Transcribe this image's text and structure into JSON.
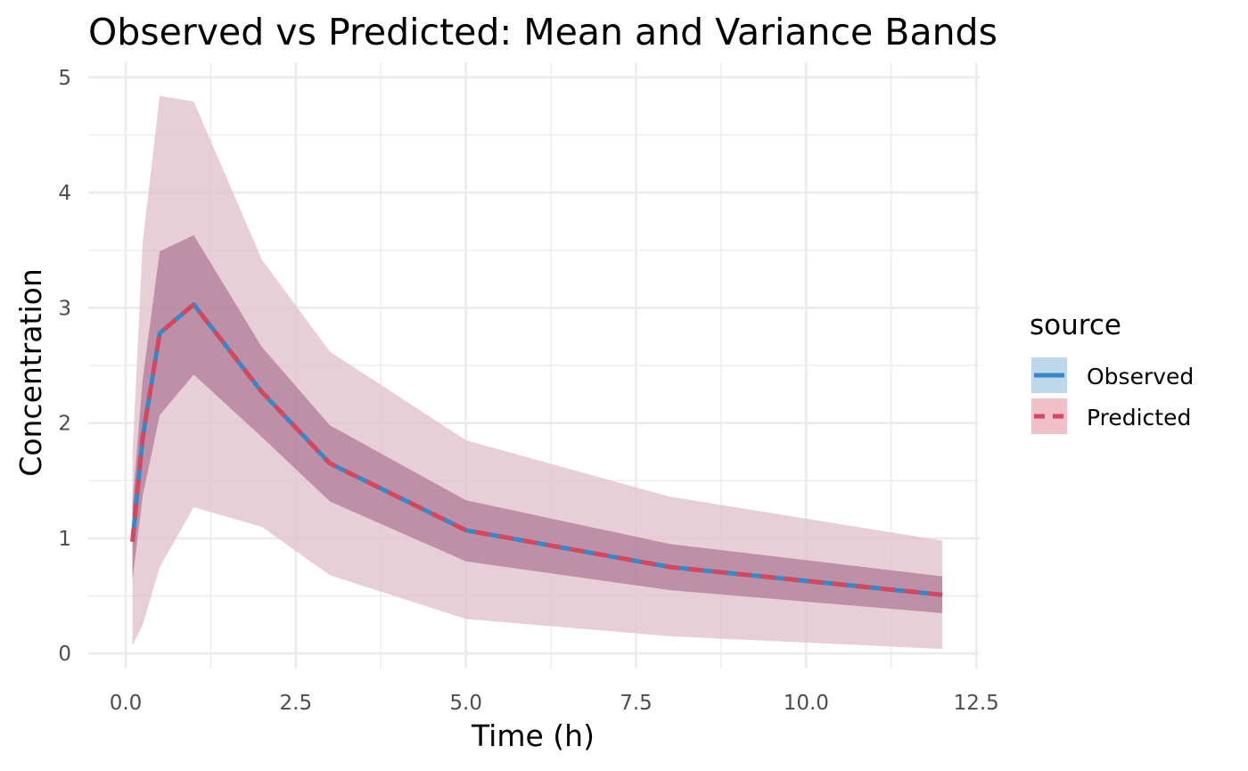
{
  "chart_data": {
    "type": "area",
    "title": "Observed vs Predicted: Mean and Variance Bands",
    "xlabel": "Time (h)",
    "ylabel": "Concentration",
    "xlim": [
      -0.55,
      12.55
    ],
    "ylim": [
      -0.13,
      5.13
    ],
    "x_ticks": [
      0.0,
      2.5,
      5.0,
      7.5,
      10.0,
      12.5
    ],
    "x_tick_labels": [
      "0.0",
      "2.5",
      "5.0",
      "7.5",
      "10.0",
      "12.5"
    ],
    "y_ticks": [
      0,
      1,
      2,
      3,
      4,
      5
    ],
    "y_tick_labels": [
      "0",
      "1",
      "2",
      "3",
      "4",
      "5"
    ],
    "grid": true,
    "legend": {
      "title": "source",
      "position": "right"
    },
    "x": [
      0.1,
      0.25,
      0.5,
      1,
      2,
      3,
      5,
      8,
      12
    ],
    "series": [
      {
        "name": "Observed",
        "color": "#3a87c8",
        "fill": "#b9d5ea",
        "linestyle": "solid",
        "mean": [
          0.97,
          1.88,
          2.78,
          3.03,
          2.27,
          1.65,
          1.07,
          0.75,
          0.51
        ],
        "sd_lower": [
          0.64,
          1.37,
          2.07,
          2.42,
          1.88,
          1.32,
          0.8,
          0.55,
          0.35
        ],
        "sd_upper": [
          1.3,
          2.38,
          3.49,
          3.63,
          2.66,
          1.98,
          1.33,
          0.95,
          0.67
        ],
        "outer_lower": [
          0.07,
          0.25,
          0.75,
          1.27,
          1.1,
          0.68,
          0.3,
          0.15,
          0.04
        ],
        "outer_upper": [
          1.72,
          3.57,
          4.84,
          4.79,
          3.42,
          2.62,
          1.85,
          1.36,
          0.98
        ]
      },
      {
        "name": "Predicted",
        "color": "#d4475e",
        "fill": "#f0bcc4",
        "linestyle": "dashed",
        "mean": [
          0.97,
          1.88,
          2.78,
          3.03,
          2.27,
          1.65,
          1.07,
          0.75,
          0.51
        ],
        "sd_lower": [
          0.64,
          1.37,
          2.07,
          2.42,
          1.88,
          1.32,
          0.8,
          0.55,
          0.35
        ],
        "sd_upper": [
          1.3,
          2.38,
          3.49,
          3.63,
          2.66,
          1.98,
          1.33,
          0.95,
          0.67
        ],
        "outer_lower": [
          0.07,
          0.25,
          0.75,
          1.27,
          1.1,
          0.68,
          0.3,
          0.15,
          0.04
        ],
        "outer_upper": [
          1.72,
          3.57,
          4.84,
          4.79,
          3.42,
          2.62,
          1.85,
          1.36,
          0.98
        ]
      }
    ]
  }
}
